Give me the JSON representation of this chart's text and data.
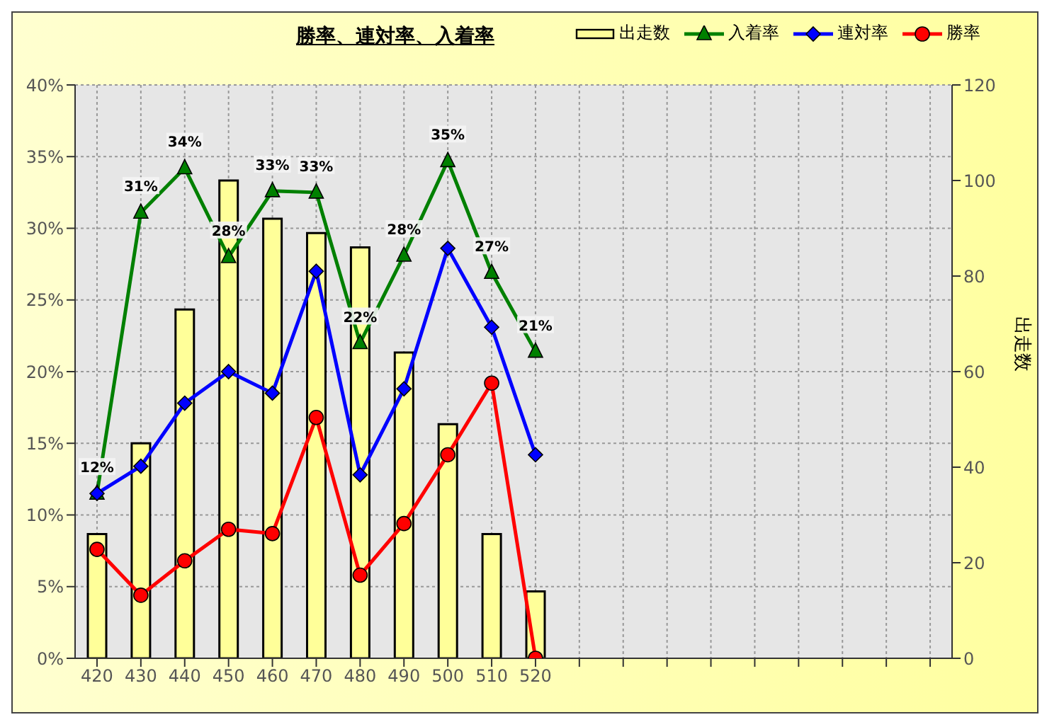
{
  "chart_data": {
    "type": "line",
    "title": "勝率、連対率、入着率",
    "y2label": "出走数",
    "categories": [
      "420",
      "430",
      "440",
      "450",
      "460",
      "470",
      "480",
      "490",
      "500",
      "510",
      "520",
      null,
      null,
      null,
      null,
      null,
      null,
      null,
      null,
      null
    ],
    "series": [
      {
        "name": "出走数",
        "type": "bar",
        "axis": "y2",
        "color": "#ffff99",
        "values": [
          26,
          45,
          73,
          100,
          92,
          89,
          86,
          64,
          49,
          26,
          14,
          null,
          null,
          null,
          null,
          null,
          null,
          null,
          null,
          null
        ]
      },
      {
        "name": "入着率",
        "marker": "triangle",
        "color": "#008000",
        "values": [
          11.5,
          31.1,
          34.2,
          28.0,
          32.6,
          32.5,
          22.0,
          28.1,
          34.7,
          26.9,
          21.4,
          null,
          null,
          null,
          null,
          null,
          null,
          null,
          null,
          null
        ],
        "value_labels": [
          "12%",
          "31%",
          "34%",
          "28%",
          "33%",
          "33%",
          "22%",
          "28%",
          "35%",
          "27%",
          "21%",
          null,
          null,
          null,
          null,
          null,
          null,
          null,
          null,
          null
        ]
      },
      {
        "name": "連対率",
        "marker": "diamond",
        "color": "#0000ff",
        "values": [
          11.5,
          13.4,
          17.8,
          20.0,
          18.5,
          27.0,
          12.8,
          18.8,
          28.6,
          23.1,
          14.2,
          null,
          null,
          null,
          null,
          null,
          null,
          null,
          null,
          null
        ]
      },
      {
        "name": "勝率",
        "marker": "circle",
        "color": "#ff0000",
        "values": [
          7.6,
          4.4,
          6.8,
          9.0,
          8.7,
          16.8,
          5.8,
          9.4,
          14.2,
          19.2,
          0,
          null,
          null,
          null,
          null,
          null,
          null,
          null,
          null,
          null
        ]
      }
    ],
    "ylim": [
      0,
      40
    ],
    "yticks": [
      {
        "value": 0,
        "label": "0%"
      },
      {
        "value": 5,
        "label": "5%"
      },
      {
        "value": 10,
        "label": "10%"
      },
      {
        "value": 15,
        "label": "15%"
      },
      {
        "value": 20,
        "label": "20%"
      },
      {
        "value": 25,
        "label": "25%"
      },
      {
        "value": 30,
        "label": "30%"
      },
      {
        "value": 35,
        "label": "35%"
      },
      {
        "value": 40,
        "label": "40%"
      }
    ],
    "y2lim": [
      0,
      120
    ],
    "y2ticks": [
      0,
      20,
      40,
      60,
      80,
      100,
      120
    ],
    "grid": true,
    "legend": "top right"
  }
}
